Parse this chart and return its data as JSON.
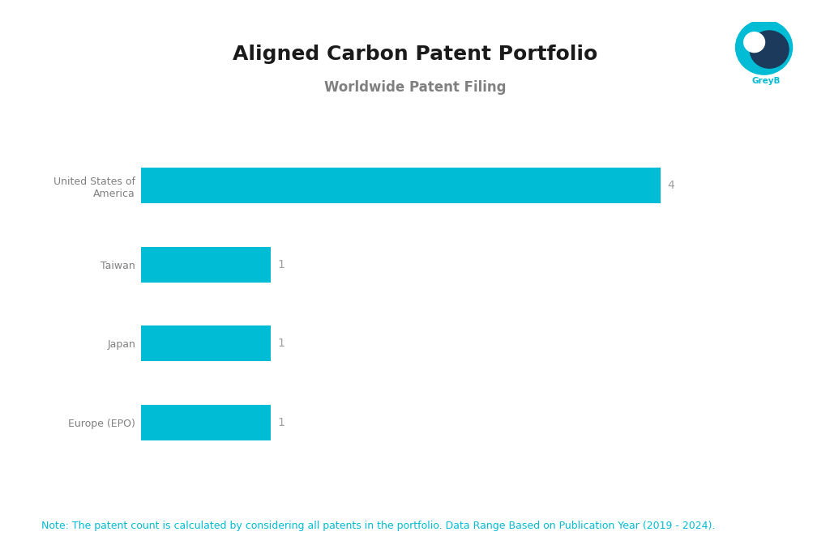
{
  "title": "Aligned Carbon Patent Portfolio",
  "subtitle": "Worldwide Patent Filing",
  "categories": [
    "United States of\nAmerica",
    "Taiwan",
    "Japan",
    "Europe (EPO)"
  ],
  "values": [
    4,
    1,
    1,
    1
  ],
  "bar_color": "#00BCD4",
  "label_color": "#a0a0a0",
  "ylabel_color": "#808080",
  "background_color": "#ffffff",
  "note_text": "Note: The patent count is calculated by considering all patents in the portfolio. Data Range Based on Publication Year (2019 - 2024).",
  "note_color": "#00BCD4",
  "title_fontsize": 18,
  "subtitle_fontsize": 12,
  "label_fontsize": 10,
  "note_fontsize": 9,
  "tick_fontsize": 9,
  "xlim": [
    0,
    4.6
  ]
}
